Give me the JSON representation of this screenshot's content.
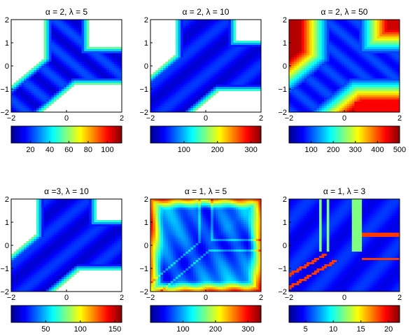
{
  "chart_data": [
    {
      "type": "heatmap",
      "title": "α = 2, λ = 5",
      "xlim": [
        -2,
        2
      ],
      "ylim": [
        -2,
        2
      ],
      "x_ticks": [
        "−2",
        "0",
        "2"
      ],
      "y_ticks": [
        "2",
        "1",
        "0",
        "−1",
        "−2"
      ],
      "colorbar": {
        "range": [
          0,
          115
        ],
        "ticks": [
          {
            "v": 20,
            "label": "20"
          },
          {
            "v": 40,
            "label": "40"
          },
          {
            "v": 60,
            "label": "60"
          },
          {
            "v": 80,
            "label": "80"
          },
          {
            "v": 100,
            "label": "100"
          }
        ]
      },
      "pattern": "y_low"
    },
    {
      "type": "heatmap",
      "title": "α = 2, λ = 10",
      "xlim": [
        -2,
        2
      ],
      "ylim": [
        -2,
        2
      ],
      "x_ticks": [
        "−2",
        "0",
        "2"
      ],
      "y_ticks": [
        "2",
        "1",
        "0",
        "−1",
        "−2"
      ],
      "colorbar": {
        "range": [
          0,
          330
        ],
        "ticks": [
          {
            "v": 100,
            "label": "100"
          },
          {
            "v": 200,
            "label": "200"
          },
          {
            "v": 300,
            "label": "300"
          }
        ]
      },
      "pattern": "y_low_wide"
    },
    {
      "type": "heatmap",
      "title": "α = 2, λ = 50",
      "xlim": [
        -2,
        2
      ],
      "ylim": [
        -2,
        2
      ],
      "x_ticks": [
        "−2",
        "0",
        "2"
      ],
      "y_ticks": [
        "2",
        "1",
        "0",
        "−1",
        "−2"
      ],
      "colorbar": {
        "range": [
          0,
          500
        ],
        "ticks": [
          {
            "v": 100,
            "label": "100"
          },
          {
            "v": 200,
            "label": "200"
          },
          {
            "v": 300,
            "label": "300"
          },
          {
            "v": 400,
            "label": "400"
          },
          {
            "v": 500,
            "label": "500"
          }
        ]
      },
      "pattern": "y_high"
    },
    {
      "type": "heatmap",
      "title": "α =3, λ = 10",
      "xlim": [
        -2,
        2
      ],
      "ylim": [
        -2,
        2
      ],
      "x_ticks": [
        "−2",
        "0",
        "2"
      ],
      "y_ticks": [
        "2",
        "1",
        "0",
        "−1",
        "−2"
      ],
      "colorbar": {
        "range": [
          0,
          160
        ],
        "ticks": [
          {
            "v": 50,
            "label": "50"
          },
          {
            "v": 100,
            "label": "100"
          },
          {
            "v": 150,
            "label": "150"
          }
        ]
      },
      "pattern": "y_low_wide"
    },
    {
      "type": "heatmap",
      "title": "α = 1, λ = 5",
      "xlim": [
        -2,
        2
      ],
      "ylim": [
        -2,
        2
      ],
      "x_ticks": [
        "−2",
        "0",
        "2"
      ],
      "y_ticks": [
        "2",
        "1",
        "0",
        "−1",
        "−2"
      ],
      "colorbar": {
        "range": [
          0,
          340
        ],
        "ticks": [
          {
            "v": 100,
            "label": "100"
          },
          {
            "v": 200,
            "label": "200"
          },
          {
            "v": 300,
            "label": "300"
          }
        ]
      },
      "pattern": "bowl"
    },
    {
      "type": "heatmap",
      "title": "α = 1, λ = 3",
      "xlim": [
        -2,
        2
      ],
      "ylim": [
        -2,
        2
      ],
      "x_ticks": [
        "−2",
        "0",
        "2"
      ],
      "y_ticks": [
        "2",
        "1",
        "0",
        "−1",
        "−2"
      ],
      "colorbar": {
        "range": [
          2,
          22
        ],
        "ticks": [
          {
            "v": 5,
            "label": "5"
          },
          {
            "v": 10,
            "label": "10"
          },
          {
            "v": 15,
            "label": "15"
          },
          {
            "v": 20,
            "label": "20"
          }
        ]
      },
      "pattern": "lines"
    }
  ]
}
